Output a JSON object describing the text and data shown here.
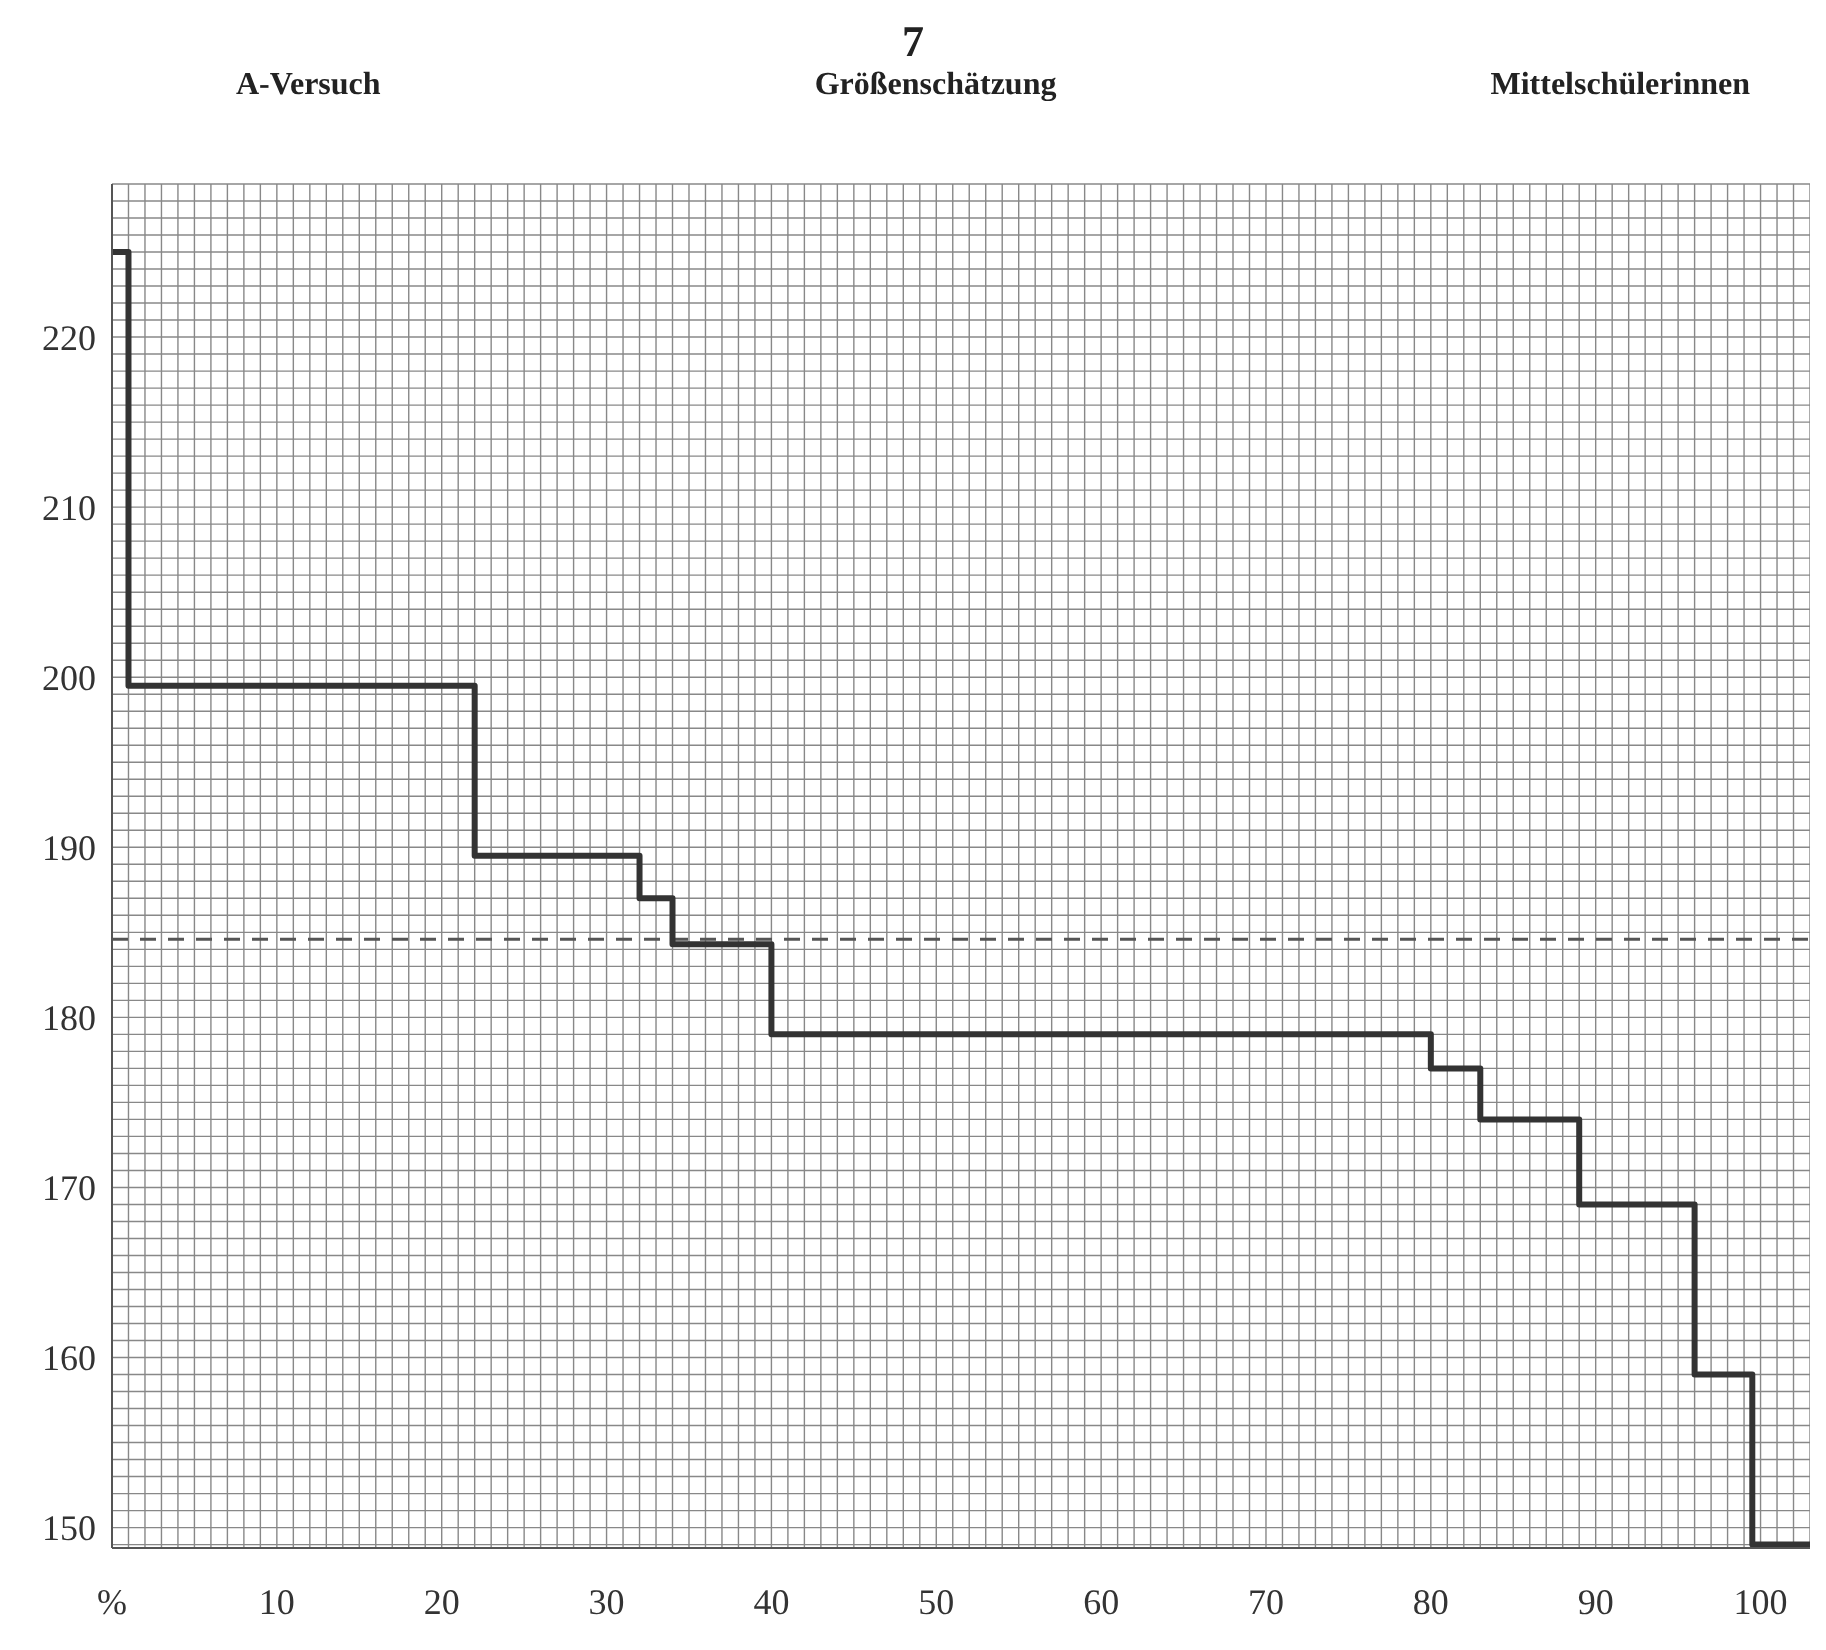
{
  "chart_data": {
    "type": "step",
    "title": "Größenschätzung",
    "annotations": [
      "7",
      "A-Versuch",
      "Mittelschülerinnen"
    ],
    "x": [
      0,
      1,
      22,
      32,
      34,
      40,
      80,
      83,
      89,
      96,
      99.5,
      103
    ],
    "series": [
      {
        "color": "#333333",
        "values": [
          225,
          199.5,
          189.5,
          187,
          184.3,
          179,
          177,
          174,
          169,
          159,
          149,
          149
        ]
      }
    ],
    "xlim": [
      0,
      103
    ],
    "ylim": [
      148.8,
      229
    ],
    "xticks": [
      {
        "value": 0,
        "label": "%"
      },
      10,
      20,
      30,
      40,
      50,
      60,
      70,
      80,
      90,
      100
    ],
    "yticks": [
      150,
      160,
      170,
      180,
      190,
      200,
      210,
      220
    ],
    "ref_lines": [
      {
        "axis": "y",
        "value": 184.6,
        "line_style": "dashed",
        "color": "#555555"
      }
    ],
    "grid": true,
    "marker": "none",
    "line_style": "solid"
  }
}
